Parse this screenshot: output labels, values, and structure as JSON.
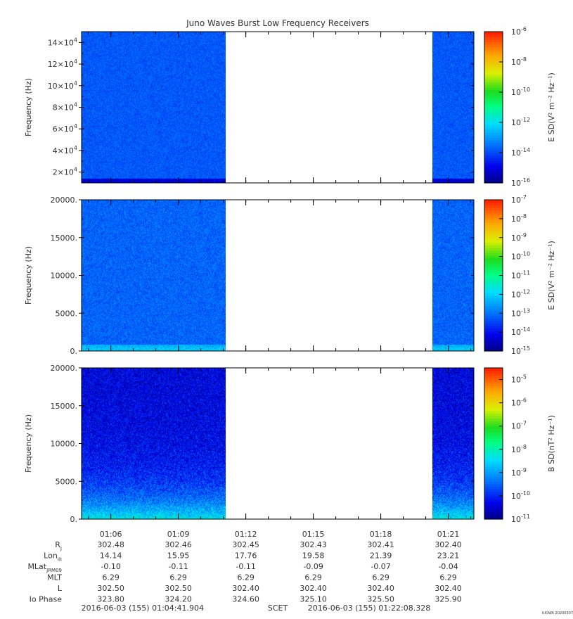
{
  "chart_data": {
    "type": "heatmap",
    "title": "Juno Waves Burst Low Frequency Receivers",
    "x": {
      "tick_labels": [
        "01:06",
        "01:09",
        "01:12",
        "01:15",
        "01:18",
        "01:21"
      ],
      "start_label": "2016-06-03 (155) 01:04:41.904",
      "end_label": "2016-06-03 (155) 01:22:08.328",
      "separator": "SCET"
    },
    "data_intervals": [
      [
        "01:04:41",
        "01:11:07"
      ],
      [
        "01:20:18",
        "01:22:08"
      ]
    ],
    "panels": [
      {
        "ylabel": "Frequency (Hz)",
        "ylim": [
          10000,
          150000
        ],
        "y_ticks": [
          {
            "mant": "2×10",
            "exp": "4"
          },
          {
            "mant": "4×10",
            "exp": "4"
          },
          {
            "mant": "6×10",
            "exp": "4"
          },
          {
            "mant": "8×10",
            "exp": "4"
          },
          {
            "mant": "10×10",
            "exp": "4"
          },
          {
            "mant": "12×10",
            "exp": "4"
          },
          {
            "mant": "14×10",
            "exp": "4"
          }
        ],
        "y_tick_values": [
          20000,
          40000,
          60000,
          80000,
          100000,
          120000,
          140000
        ],
        "colorbar_label": "E SD(V² m⁻² Hz⁻¹)",
        "colorbar_ticks": [
          "-6",
          "-8",
          "-10",
          "-12",
          "-14",
          "-16"
        ],
        "colorbar_range_log10": [
          -16,
          -6
        ],
        "typical_log10": -13.9,
        "low_band_log10": -15.2
      },
      {
        "ylabel": "Frequency (Hz)",
        "ylim": [
          0,
          20000
        ],
        "y_ticks": [
          "0.",
          "5000.",
          "10000.",
          "15000.",
          "20000."
        ],
        "y_tick_values": [
          0,
          5000,
          10000,
          15000,
          20000
        ],
        "colorbar_label": "E SD(V² m⁻² Hz⁻¹)",
        "colorbar_ticks": [
          "-7",
          "-8",
          "-9",
          "-10",
          "-11",
          "-12",
          "-13",
          "-14",
          "-15"
        ],
        "colorbar_range_log10": [
          -15,
          -7
        ],
        "typical_log10": -13.2,
        "low_band_log10": -12.0
      },
      {
        "ylabel": "Frequency (Hz)",
        "ylim": [
          0,
          20000
        ],
        "y_ticks": [
          "0.",
          "5000.",
          "10000.",
          "15000.",
          "20000."
        ],
        "y_tick_values": [
          0,
          5000,
          10000,
          15000,
          20000
        ],
        "colorbar_label": "B SD(nT² Hz⁻¹)",
        "colorbar_ticks": [
          "-5",
          "-6",
          "-7",
          "-8",
          "-9",
          "-10",
          "-11"
        ],
        "colorbar_range_log10": [
          -11,
          -4.5
        ],
        "typical_log10": -10.4,
        "low_band_log10": -8.3
      }
    ],
    "ephemeris": {
      "rows": [
        {
          "label": "R",
          "sub": "J",
          "values": [
            "302.48",
            "302.46",
            "302.45",
            "302.43",
            "302.41",
            "302.40"
          ]
        },
        {
          "label": "Lon",
          "sub": "III",
          "values": [
            "14.14",
            "15.95",
            "17.76",
            "19.58",
            "21.39",
            "23.21"
          ]
        },
        {
          "label": "MLat",
          "sub": "JRM09",
          "values": [
            "-0.10",
            "-0.11",
            "-0.11",
            "-0.09",
            "-0.07",
            "-0.04"
          ]
        },
        {
          "label": "MLT",
          "sub": "",
          "values": [
            "6.29",
            "6.29",
            "6.29",
            "6.29",
            "6.29",
            "6.29"
          ]
        },
        {
          "label": "L",
          "sub": "",
          "values": [
            "302.50",
            "302.50",
            "302.40",
            "302.40",
            "302.40",
            "302.40"
          ]
        },
        {
          "label": "Io Phase",
          "sub": "",
          "values": [
            "323.80",
            "324.20",
            "324.60",
            "325.10",
            "325.50",
            "325.90"
          ]
        }
      ]
    },
    "footer_credit": "UIOWA 20200307"
  }
}
